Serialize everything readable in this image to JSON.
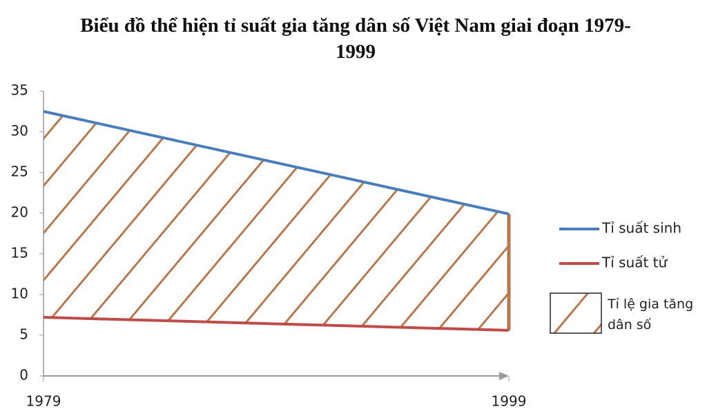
{
  "chart_data": {
    "type": "line",
    "title": "Biểu đồ thể hiện tỉ suất gia tăng dân số Việt Nam giai đoạn 1979-1999",
    "x": [
      1979,
      1999
    ],
    "xlim": [
      1979,
      1999
    ],
    "xticks": [
      1979,
      1999
    ],
    "ylim": [
      0,
      35
    ],
    "yticks": [
      0,
      5,
      10,
      15,
      20,
      25,
      30,
      35
    ],
    "grid": false,
    "series": [
      {
        "name": "Tỉ suất sinh",
        "color": "#4a7ebb",
        "values": [
          32.5,
          19.9
        ]
      },
      {
        "name": "Tỉ suất tử",
        "color": "#be4b48",
        "values": [
          7.2,
          5.6
        ]
      }
    ],
    "hatch": {
      "name": "Tỉ lệ gia tăng dân số",
      "color": "#b8774d"
    },
    "legend": "right"
  }
}
